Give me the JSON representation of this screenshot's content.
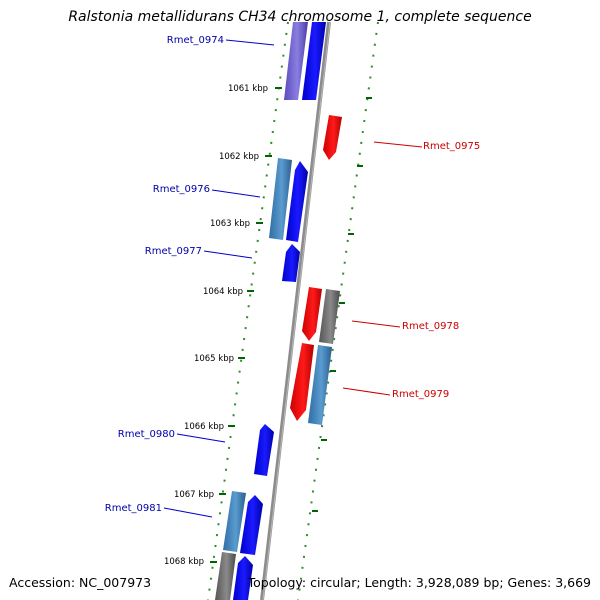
{
  "title": "Ralstonia metallidurans CH34 chromosome 1, complete sequence",
  "footer": {
    "accession": "Accession: NC_007973",
    "summary": "Topology: circular; Length: 3,928,089 bp; Genes: 3,669"
  },
  "colors": {
    "forward_cds": "#0000ee",
    "reverse_cds": "#ee0000",
    "hypothetical": "#4682b4",
    "purple": "#6a5acd",
    "gray_feature": "#707070",
    "backbone": "#808080",
    "tick": "#006400",
    "blue_label": "#0000aa",
    "red_label": "#cc0000"
  },
  "ticks": [
    {
      "label": "1061 kbp",
      "kbp": 1061
    },
    {
      "label": "1062 kbp",
      "kbp": 1062
    },
    {
      "label": "1063 kbp",
      "kbp": 1063
    },
    {
      "label": "1064 kbp",
      "kbp": 1064
    },
    {
      "label": "1065 kbp",
      "kbp": 1065
    },
    {
      "label": "1066 kbp",
      "kbp": 1066
    },
    {
      "label": "1067 kbp",
      "kbp": 1067
    },
    {
      "label": "1068 kbp",
      "kbp": 1068
    }
  ],
  "genes": [
    {
      "id": "Rmet_0974",
      "strand": "forward",
      "label_color": "blue_label"
    },
    {
      "id": "Rmet_0975",
      "strand": "reverse",
      "label_color": "red_label"
    },
    {
      "id": "Rmet_0976",
      "strand": "forward",
      "label_color": "blue_label"
    },
    {
      "id": "Rmet_0977",
      "strand": "forward",
      "label_color": "blue_label"
    },
    {
      "id": "Rmet_0978",
      "strand": "reverse",
      "label_color": "red_label"
    },
    {
      "id": "Rmet_0979",
      "strand": "reverse",
      "label_color": "red_label"
    },
    {
      "id": "Rmet_0980",
      "strand": "forward",
      "label_color": "blue_label"
    },
    {
      "id": "Rmet_0981",
      "strand": "forward",
      "label_color": "blue_label"
    }
  ]
}
